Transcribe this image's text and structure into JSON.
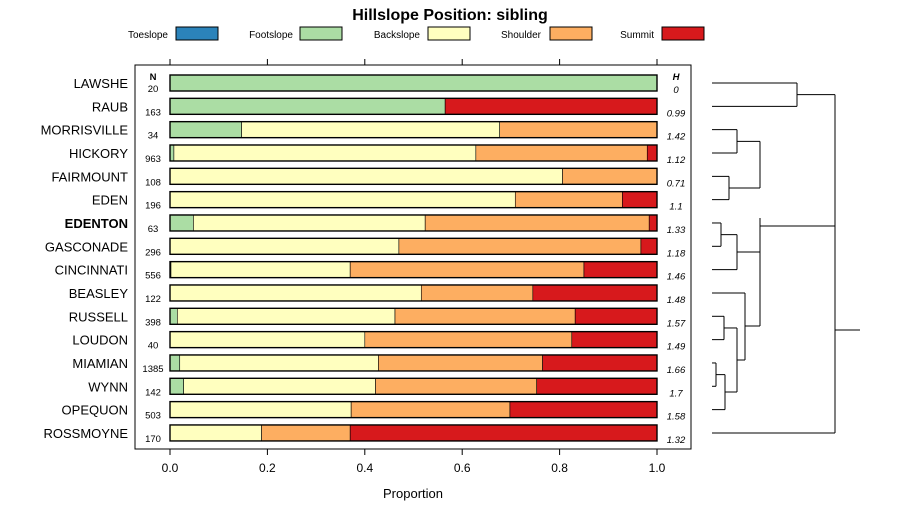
{
  "chart_data": {
    "type": "bar",
    "orientation": "horizontal",
    "stacked": true,
    "title": "Hillslope Position: sibling",
    "xlabel": "Proportion",
    "xlim": [
      0,
      1
    ],
    "xticks": [
      "0.0",
      "0.2",
      "0.4",
      "0.6",
      "0.8",
      "1.0"
    ],
    "legend_position": "top",
    "n_header": "N",
    "h_header": "H",
    "series_names": [
      "Toeslope",
      "Footslope",
      "Backslope",
      "Shoulder",
      "Summit"
    ],
    "series_colors": [
      "#2b83ba",
      "#abdda4",
      "#ffffbf",
      "#fdae61",
      "#d7191c"
    ],
    "categories": [
      "LAWSHE",
      "RAUB",
      "MORRISVILLE",
      "HICKORY",
      "FAIRMOUNT",
      "EDEN",
      "EDENTON",
      "GASCONADE",
      "CINCINNATI",
      "BEASLEY",
      "RUSSELL",
      "LOUDON",
      "MIAMIAN",
      "WYNN",
      "OPEQUON",
      "ROSSMOYNE"
    ],
    "highlighted_category": "EDENTON",
    "n": [
      "20",
      "163",
      "34",
      "963",
      "108",
      "196",
      "63",
      "296",
      "556",
      "122",
      "398",
      "40",
      "1385",
      "142",
      "503",
      "170"
    ],
    "h": [
      "0",
      "0.99",
      "1.42",
      "1.12",
      "0.71",
      "1.1",
      "1.33",
      "1.18",
      "1.46",
      "1.48",
      "1.57",
      "1.49",
      "1.66",
      "1.7",
      "1.58",
      "1.32"
    ],
    "values": [
      [
        0,
        1.0,
        0,
        0,
        0
      ],
      [
        0,
        0.565,
        0,
        0,
        0.435
      ],
      [
        0,
        0.147,
        0.53,
        0.323,
        0
      ],
      [
        0,
        0.008,
        0.62,
        0.352,
        0.02
      ],
      [
        0,
        0,
        0.806,
        0.194,
        0
      ],
      [
        0,
        0,
        0.709,
        0.22,
        0.071
      ],
      [
        0,
        0.048,
        0.476,
        0.46,
        0.016
      ],
      [
        0,
        0,
        0.47,
        0.497,
        0.033
      ],
      [
        0,
        0.002,
        0.368,
        0.48,
        0.15
      ],
      [
        0,
        0,
        0.516,
        0.229,
        0.255
      ],
      [
        0,
        0.015,
        0.447,
        0.37,
        0.168
      ],
      [
        0,
        0,
        0.4,
        0.425,
        0.175
      ],
      [
        0,
        0.02,
        0.408,
        0.337,
        0.235
      ],
      [
        0,
        0.028,
        0.394,
        0.331,
        0.247
      ],
      [
        0,
        0,
        0.372,
        0.326,
        0.302
      ],
      [
        0,
        0,
        0.188,
        0.182,
        0.63
      ]
    ],
    "dendrogram": "right"
  }
}
